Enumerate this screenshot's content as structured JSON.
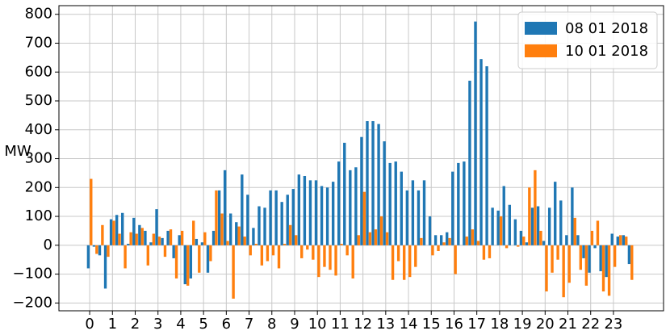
{
  "chart_data": {
    "type": "bar",
    "y_label": "MW",
    "x": [
      0,
      0.25,
      0.5,
      0.75,
      1,
      1.25,
      1.5,
      1.75,
      2,
      2.25,
      2.5,
      2.75,
      3,
      3.25,
      3.5,
      3.75,
      4,
      4.25,
      4.5,
      4.75,
      5,
      5.25,
      5.5,
      5.75,
      6,
      6.25,
      6.5,
      6.75,
      7,
      7.25,
      7.5,
      7.75,
      8,
      8.25,
      8.5,
      8.75,
      9,
      9.25,
      9.5,
      9.75,
      10,
      10.25,
      10.5,
      10.75,
      11,
      11.25,
      11.5,
      11.75,
      12,
      12.25,
      12.5,
      12.75,
      13,
      13.25,
      13.5,
      13.75,
      14,
      14.25,
      14.5,
      14.75,
      15,
      15.25,
      15.5,
      15.75,
      16,
      16.25,
      16.5,
      16.75,
      17,
      17.25,
      17.5,
      17.75,
      18,
      18.25,
      18.5,
      18.75,
      19,
      19.25,
      19.5,
      19.75,
      20,
      20.25,
      20.5,
      20.75,
      21,
      21.25,
      21.5,
      21.75,
      22,
      22.25,
      22.5,
      22.75,
      23,
      23.25,
      23.5,
      23.75
    ],
    "series": [
      {
        "name": "08 01 2018",
        "color": "#1f77b4",
        "values": [
          -80,
          -5,
          -35,
          -150,
          90,
          105,
          112,
          5,
          95,
          70,
          50,
          10,
          125,
          25,
          50,
          -45,
          35,
          -135,
          -115,
          22,
          10,
          -95,
          50,
          190,
          260,
          110,
          80,
          245,
          175,
          60,
          135,
          130,
          190,
          190,
          150,
          175,
          195,
          245,
          240,
          225,
          225,
          205,
          200,
          220,
          290,
          355,
          260,
          270,
          375,
          430,
          430,
          420,
          360,
          285,
          290,
          255,
          190,
          225,
          190,
          225,
          100,
          35,
          35,
          45,
          255,
          285,
          290,
          570,
          775,
          645,
          620,
          130,
          120,
          205,
          140,
          90,
          50,
          10,
          130,
          135,
          15,
          130,
          220,
          155,
          35,
          200,
          35,
          -45,
          -95,
          -10,
          -90,
          -110,
          40,
          30,
          35,
          -65
        ]
      },
      {
        "name": "10 01 2018",
        "color": "#ff7f0e",
        "values": [
          230,
          -30,
          70,
          -40,
          85,
          40,
          -80,
          45,
          40,
          60,
          -70,
          40,
          30,
          -40,
          55,
          -115,
          50,
          -140,
          85,
          -95,
          45,
          -55,
          190,
          110,
          15,
          -185,
          65,
          30,
          -35,
          5,
          -70,
          -55,
          -35,
          -80,
          5,
          70,
          35,
          -45,
          -15,
          -50,
          -110,
          -75,
          -85,
          -105,
          5,
          -35,
          -115,
          35,
          185,
          45,
          55,
          100,
          45,
          -120,
          -55,
          -120,
          -110,
          -75,
          25,
          0,
          -35,
          -20,
          10,
          25,
          -100,
          0,
          30,
          55,
          15,
          -50,
          -45,
          0,
          100,
          -10,
          0,
          -5,
          30,
          200,
          260,
          50,
          -160,
          -95,
          -50,
          -180,
          -130,
          95,
          -85,
          -140,
          50,
          85,
          -160,
          -175,
          -75,
          35,
          30,
          -120
        ]
      }
    ],
    "xlim": [
      -1.35,
      25.2
    ],
    "xticks": [
      0,
      1,
      2,
      3,
      4,
      5,
      6,
      7,
      8,
      9,
      10,
      11,
      12,
      13,
      14,
      15,
      16,
      17,
      18,
      19,
      20,
      21,
      22,
      23
    ],
    "ylim": [
      -227,
      830
    ],
    "yticks": [
      {
        "value": -200,
        "label": "−200"
      },
      {
        "value": -100,
        "label": "−100"
      },
      0,
      100,
      200,
      300,
      400,
      500,
      600,
      700,
      800
    ],
    "grid": true,
    "legend": "upper right"
  }
}
